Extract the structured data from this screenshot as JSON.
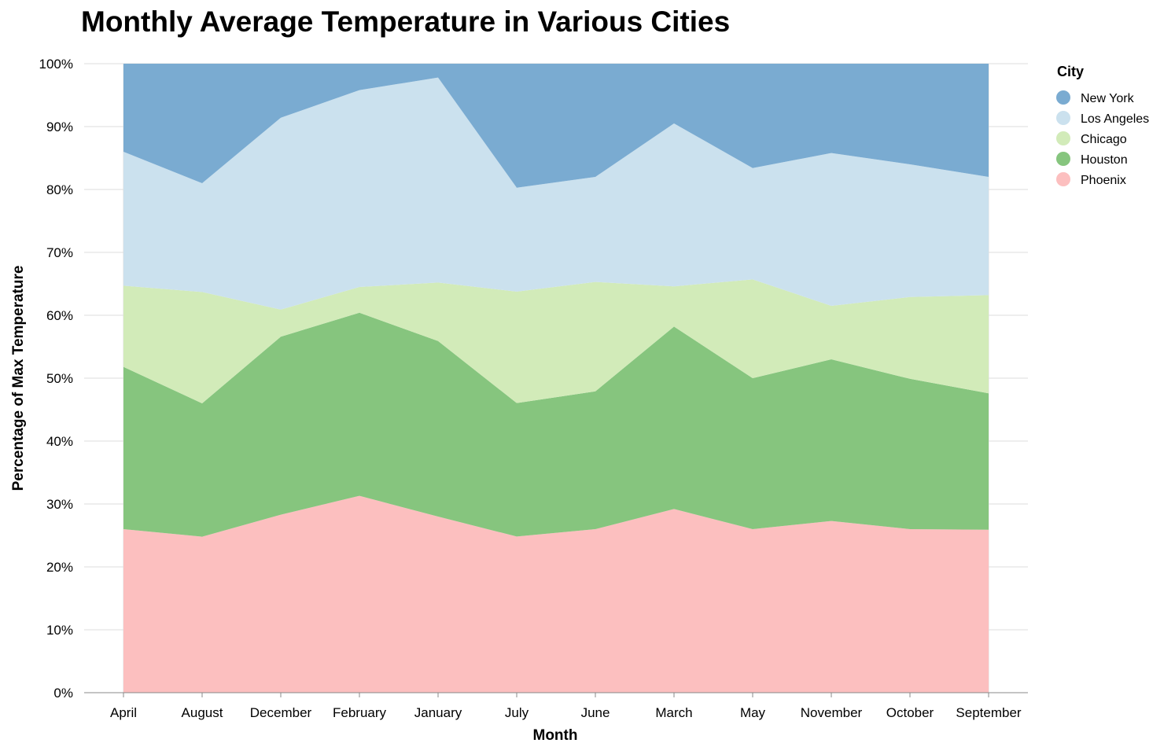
{
  "chart_data": {
    "type": "area",
    "stacked": "normalize",
    "title": "Monthly Average Temperature in Various Cities",
    "xlabel": "Month",
    "ylabel": "Percentage of Max Temperature",
    "ylim": [
      0,
      100
    ],
    "y_ticks": [
      "0%",
      "10%",
      "20%",
      "30%",
      "40%",
      "50%",
      "60%",
      "70%",
      "80%",
      "90%",
      "100%"
    ],
    "grid": true,
    "legend_title": "City",
    "legend_position": "right",
    "categories": [
      "April",
      "August",
      "December",
      "February",
      "January",
      "July",
      "June",
      "March",
      "May",
      "November",
      "October",
      "September"
    ],
    "series": [
      {
        "name": "New York",
        "color": "#7aabd1",
        "values": [
          14.0,
          19.0,
          8.6,
          4.2,
          2.2,
          19.7,
          18.0,
          9.5,
          16.6,
          14.2,
          16.0,
          18.0
        ]
      },
      {
        "name": "Los Angeles",
        "color": "#cbe1ee",
        "values": [
          21.3,
          17.3,
          30.5,
          31.3,
          32.6,
          16.5,
          16.7,
          25.9,
          17.7,
          24.3,
          21.1,
          18.8
        ]
      },
      {
        "name": "Chicago",
        "color": "#d2ebb9",
        "values": [
          12.9,
          17.7,
          4.3,
          4.1,
          9.3,
          17.7,
          17.4,
          6.4,
          15.7,
          8.5,
          13.0,
          15.6
        ]
      },
      {
        "name": "Houston",
        "color": "#86c57e",
        "values": [
          25.8,
          21.2,
          28.3,
          29.1,
          27.9,
          21.2,
          21.9,
          29.0,
          24.0,
          25.7,
          23.9,
          21.7
        ]
      },
      {
        "name": "Phoenix",
        "color": "#fcbfbf",
        "values": [
          26.0,
          24.8,
          28.3,
          31.3,
          28.0,
          24.8,
          26.0,
          29.2,
          26.0,
          27.3,
          26.0,
          25.9
        ]
      }
    ]
  }
}
